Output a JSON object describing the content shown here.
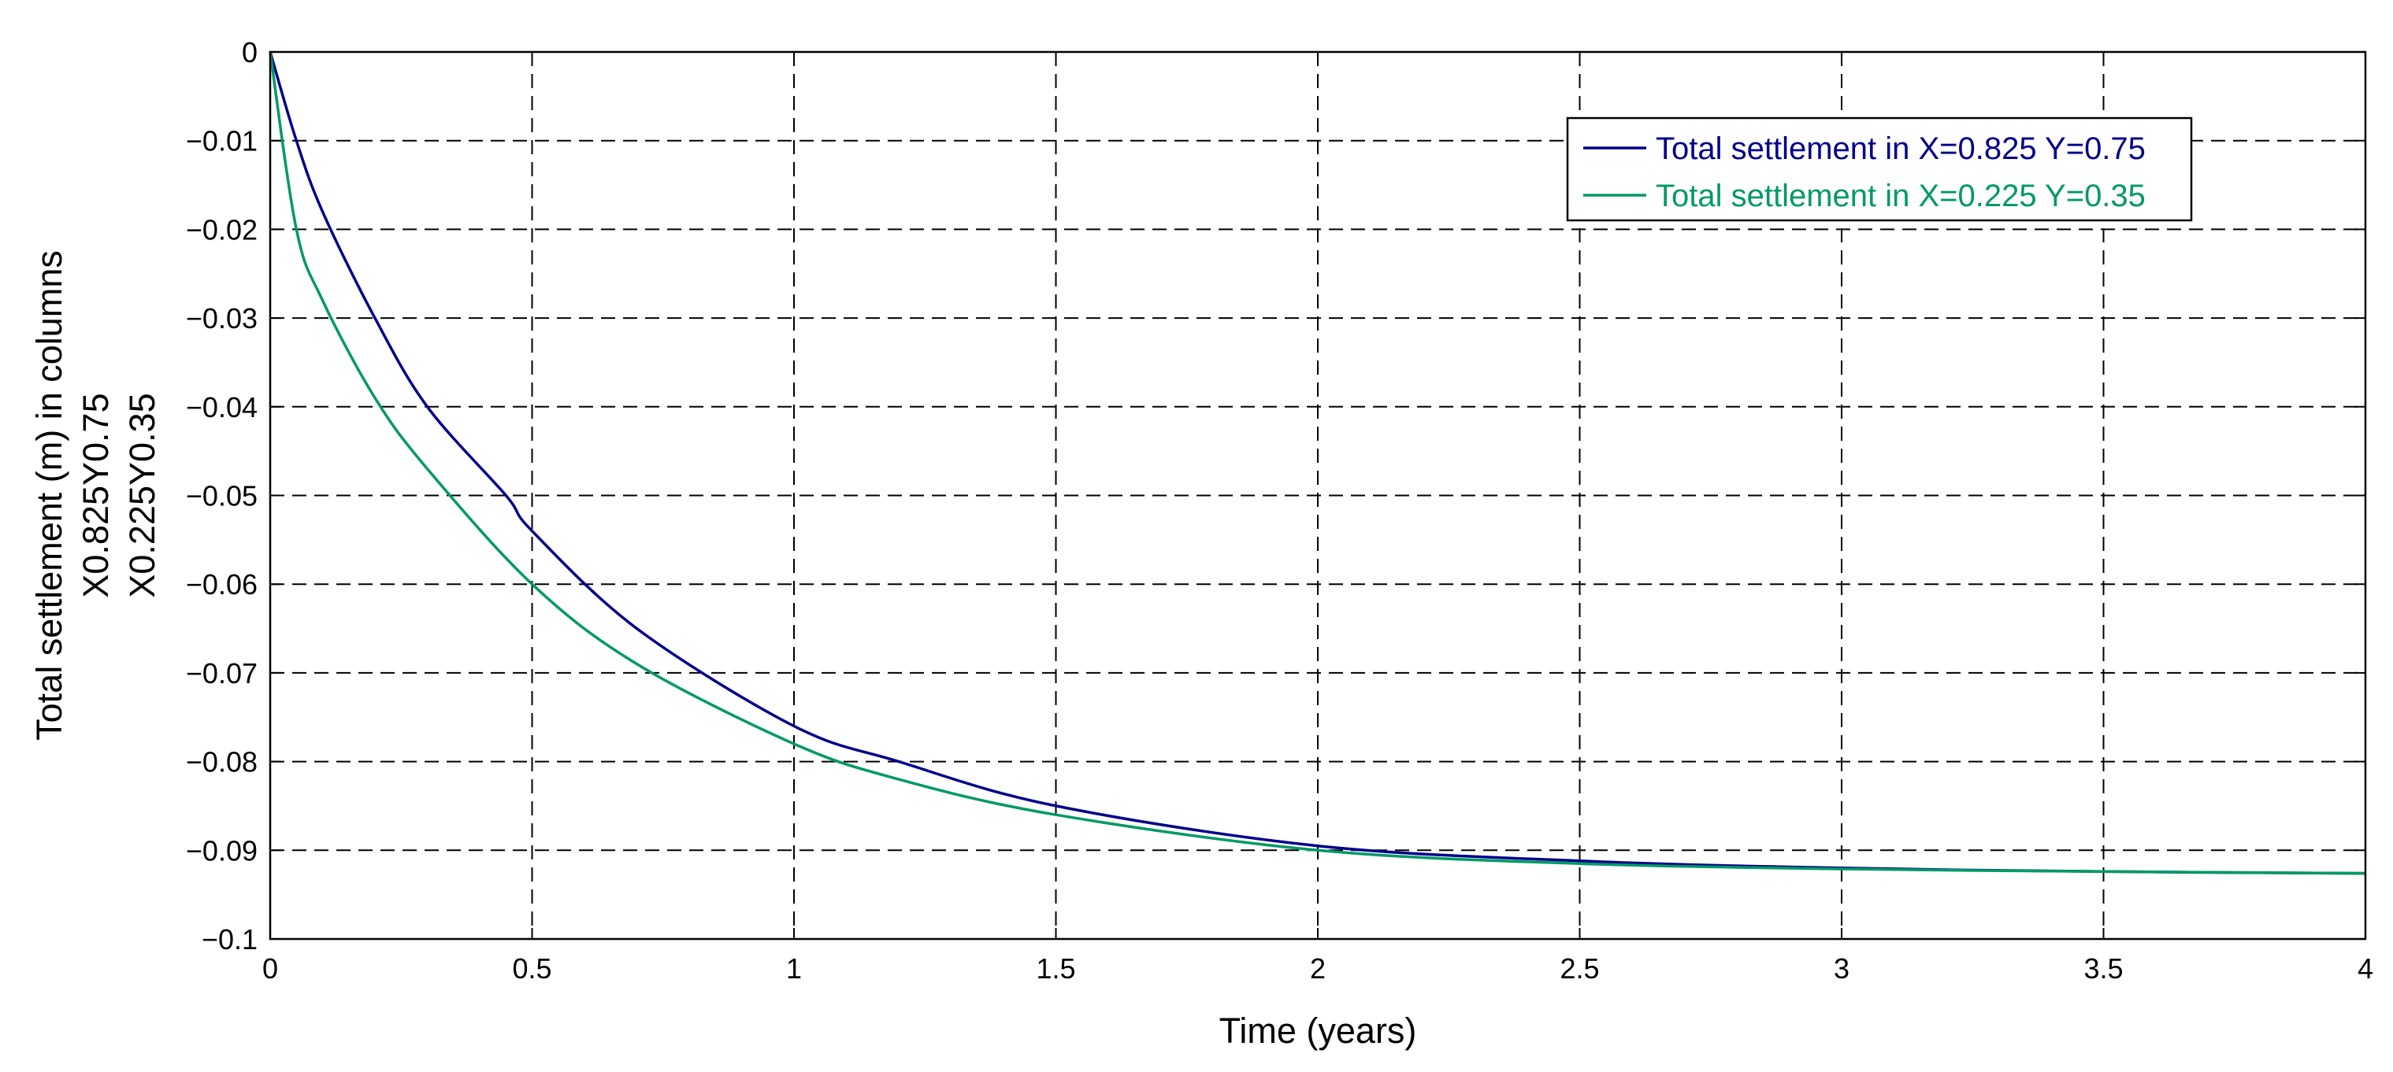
{
  "chart_data": {
    "type": "line",
    "title": "",
    "xlabel": "Time (years)",
    "ylabel_lines": [
      "Total settlement (m) in columns",
      "X0.825Y0.75",
      "X0.225Y0.35"
    ],
    "xlim": [
      0,
      4
    ],
    "ylim": [
      -0.1,
      0
    ],
    "xticks": [
      0,
      0.5,
      1,
      1.5,
      2,
      2.5,
      3,
      3.5,
      4
    ],
    "xtick_labels": [
      "0",
      "0.5",
      "1",
      "1.5",
      "2",
      "2.5",
      "3",
      "3.5",
      "4"
    ],
    "yticks": [
      0,
      -0.01,
      -0.02,
      -0.03,
      -0.04,
      -0.05,
      -0.06,
      -0.07,
      -0.08,
      -0.09,
      -0.1
    ],
    "ytick_labels": [
      "0",
      "−0.01",
      "−0.02",
      "−0.03",
      "−0.04",
      "−0.05",
      "−0.06",
      "−0.07",
      "−0.08",
      "−0.09",
      "−0.1"
    ],
    "grid": true,
    "legend_position": "top-right",
    "series": [
      {
        "name": "Total settlement in X=0.825 Y=0.75",
        "color": "#00008B",
        "x": [
          0,
          0.05,
          0.1,
          0.2,
          0.3,
          0.45,
          0.5,
          0.7,
          1.0,
          1.2,
          1.5,
          2.0,
          2.5,
          3.0,
          3.5,
          4.0
        ],
        "y": [
          0,
          -0.01,
          -0.018,
          -0.03,
          -0.04,
          -0.05,
          -0.054,
          -0.065,
          -0.076,
          -0.08,
          -0.085,
          -0.0895,
          -0.0912,
          -0.092,
          -0.0924,
          -0.0926
        ]
      },
      {
        "name": "Total settlement in X=0.225 Y=0.35",
        "color": "#009966",
        "x": [
          0,
          0.05,
          0.1,
          0.2,
          0.3,
          0.5,
          0.7,
          1.0,
          1.2,
          1.5,
          2.0,
          2.5,
          3.0,
          3.5,
          4.0
        ],
        "y": [
          0,
          -0.02,
          -0.028,
          -0.039,
          -0.047,
          -0.06,
          -0.069,
          -0.078,
          -0.082,
          -0.086,
          -0.09,
          -0.0915,
          -0.0921,
          -0.0924,
          -0.0926
        ]
      }
    ]
  }
}
